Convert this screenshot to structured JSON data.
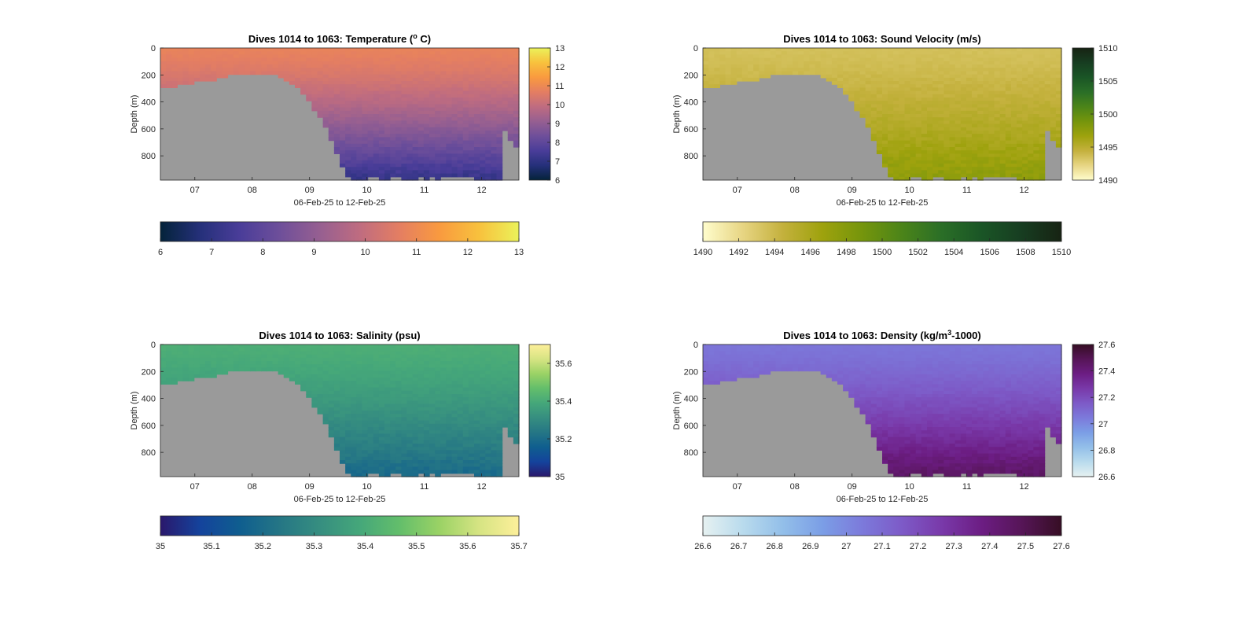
{
  "colors": {
    "land": "#9a9a9a",
    "axis": "#262626",
    "thermal": [
      "#04233a",
      "#25307a",
      "#4a3d99",
      "#6e4f9a",
      "#965f91",
      "#bf6c80",
      "#e47e62",
      "#f99a3f",
      "#f8c13d",
      "#ebf25a"
    ],
    "speed": [
      "#fffdcd",
      "#e7d583",
      "#c4b13d",
      "#9ea20d",
      "#75950c",
      "#4b8419",
      "#2a6e27",
      "#1a5526",
      "#173d21",
      "#172313"
    ],
    "haline": [
      "#2a186c",
      "#14439c",
      "#0f5e8f",
      "#257685",
      "#368e80",
      "#45a77a",
      "#63be6b",
      "#9ad265",
      "#d6e483",
      "#fdef9a"
    ],
    "dense": [
      "#e6f1f1",
      "#b9dbed",
      "#93bfe9",
      "#7b9ee6",
      "#7c7adb",
      "#7d5ac7",
      "#7939a9",
      "#6c1d83",
      "#561557",
      "#360e24"
    ]
  },
  "chart_data": [
    {
      "type": "heatmap",
      "id": "temp",
      "title_main": "Dives 1014 to 1063: Temperature (",
      "title_sup": "o",
      "title_end": " C)",
      "xlabel": "06-Feb-25 to 12-Feb-25",
      "ylabel": "Depth (m)",
      "xlim": [
        6.4,
        12.65
      ],
      "ylim": [
        0,
        980
      ],
      "xticks": [
        "07",
        "08",
        "09",
        "10",
        "11",
        "12"
      ],
      "xtick_values": [
        7,
        8,
        9,
        10,
        11,
        12
      ],
      "yticks": [
        "0",
        "200",
        "400",
        "600",
        "800"
      ],
      "ytick_values": [
        0,
        200,
        400,
        600,
        800
      ],
      "colormap": "thermal",
      "clim": [
        6,
        13
      ],
      "colorbar_ticks": [
        "6",
        "7",
        "8",
        "9",
        "10",
        "11",
        "12",
        "13"
      ],
      "colorbar_tick_values": [
        6,
        7,
        8,
        9,
        10,
        11,
        12,
        13
      ],
      "hbar_ticks": [
        "6",
        "7",
        "8",
        "9",
        "10",
        "11",
        "12",
        "13"
      ],
      "hbar_tick_values": [
        6,
        7,
        8,
        9,
        10,
        11,
        12,
        13
      ],
      "surface_value": 10.8,
      "deep_value": 7.2
    },
    {
      "type": "heatmap",
      "id": "sound",
      "title_main": "Dives 1014 to 1063: Sound Velocity (m/s)",
      "title_sup": "",
      "title_end": "",
      "xlabel": "06-Feb-25 to 12-Feb-25",
      "ylabel": "Depth (m)",
      "xlim": [
        6.4,
        12.65
      ],
      "ylim": [
        0,
        980
      ],
      "xticks": [
        "07",
        "08",
        "09",
        "10",
        "11",
        "12"
      ],
      "xtick_values": [
        7,
        8,
        9,
        10,
        11,
        12
      ],
      "yticks": [
        "0",
        "200",
        "400",
        "600",
        "800"
      ],
      "ytick_values": [
        0,
        200,
        400,
        600,
        800
      ],
      "colormap": "speed",
      "clim": [
        1490,
        1510
      ],
      "colorbar_ticks": [
        "1490",
        "1495",
        "1500",
        "1505",
        "1510"
      ],
      "colorbar_tick_values": [
        1490,
        1495,
        1500,
        1505,
        1510
      ],
      "hbar_ticks": [
        "1490",
        "1492",
        "1494",
        "1496",
        "1498",
        "1500",
        "1502",
        "1504",
        "1506",
        "1508",
        "1510"
      ],
      "hbar_tick_values": [
        1490,
        1492,
        1494,
        1496,
        1498,
        1500,
        1502,
        1504,
        1506,
        1508,
        1510
      ],
      "surface_value": 1493.5,
      "deep_value": 1497.5
    },
    {
      "type": "heatmap",
      "id": "salinity",
      "title_main": "Dives 1014 to 1063: Salinity (psu)",
      "title_sup": "",
      "title_end": "",
      "xlabel": "06-Feb-25 to 12-Feb-25",
      "ylabel": "Depth (m)",
      "xlim": [
        6.4,
        12.65
      ],
      "ylim": [
        0,
        980
      ],
      "xticks": [
        "07",
        "08",
        "09",
        "10",
        "11",
        "12"
      ],
      "xtick_values": [
        7,
        8,
        9,
        10,
        11,
        12
      ],
      "yticks": [
        "0",
        "200",
        "400",
        "600",
        "800"
      ],
      "ytick_values": [
        0,
        200,
        400,
        600,
        800
      ],
      "colormap": "haline",
      "clim": [
        35,
        35.7
      ],
      "colorbar_ticks": [
        "35",
        "35.2",
        "35.4",
        "35.6"
      ],
      "colorbar_tick_values": [
        35,
        35.2,
        35.4,
        35.6
      ],
      "hbar_ticks": [
        "35",
        "35.1",
        "35.2",
        "35.3",
        "35.4",
        "35.5",
        "35.6",
        "35.7"
      ],
      "hbar_tick_values": [
        35,
        35.1,
        35.2,
        35.3,
        35.4,
        35.5,
        35.6,
        35.7
      ],
      "surface_value": 35.41,
      "deep_value": 35.2
    },
    {
      "type": "heatmap",
      "id": "density",
      "title_main": "Dives 1014 to 1063: Density (kg/m",
      "title_sup": "3",
      "title_end": "-1000)",
      "xlabel": "06-Feb-25 to 12-Feb-25",
      "ylabel": "Depth (m)",
      "xlim": [
        6.4,
        12.65
      ],
      "ylim": [
        0,
        980
      ],
      "xticks": [
        "07",
        "08",
        "09",
        "10",
        "11",
        "12"
      ],
      "xtick_values": [
        7,
        8,
        9,
        10,
        11,
        12
      ],
      "yticks": [
        "0",
        "200",
        "400",
        "600",
        "800"
      ],
      "ytick_values": [
        0,
        200,
        400,
        600,
        800
      ],
      "colormap": "dense",
      "clim": [
        26.6,
        27.6
      ],
      "colorbar_ticks": [
        "26.6",
        "26.8",
        "27",
        "27.2",
        "27.4",
        "27.6"
      ],
      "colorbar_tick_values": [
        26.6,
        26.8,
        27,
        27.2,
        27.4,
        27.6
      ],
      "hbar_ticks": [
        "26.6",
        "26.7",
        "26.8",
        "26.9",
        "27",
        "27.1",
        "27.2",
        "27.3",
        "27.4",
        "27.5",
        "27.6"
      ],
      "hbar_tick_values": [
        26.6,
        26.7,
        26.8,
        26.9,
        27,
        27.1,
        27.2,
        27.3,
        27.4,
        27.5,
        27.6
      ],
      "surface_value": 27.06,
      "deep_value": 27.45
    }
  ]
}
